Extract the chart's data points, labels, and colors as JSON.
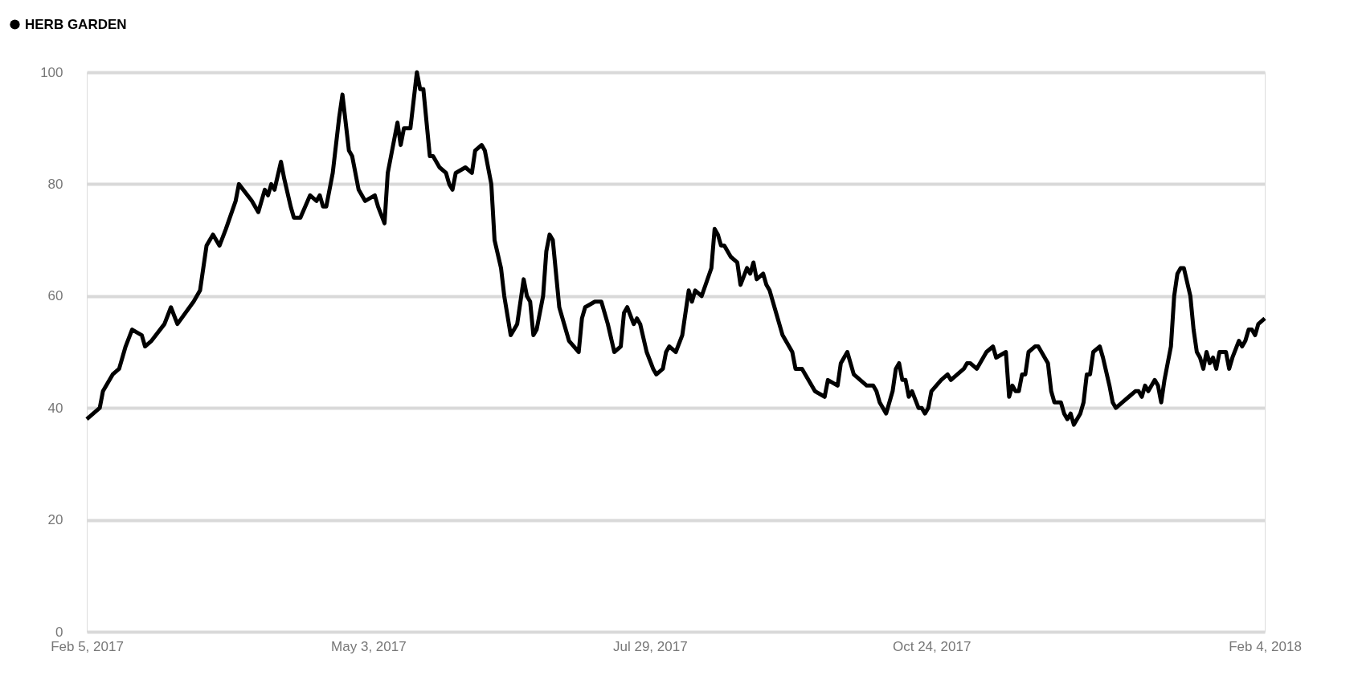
{
  "chart_data": {
    "type": "line",
    "xlim": [
      "2017-02-05",
      "2018-02-04"
    ],
    "ylim": [
      0,
      100
    ],
    "yticks": [
      0,
      20,
      40,
      60,
      80,
      100
    ],
    "xticks": [
      {
        "value": "2017-02-05",
        "label": "Feb 5, 2017"
      },
      {
        "value": "2017-05-03",
        "label": "May 3, 2017"
      },
      {
        "value": "2017-07-29",
        "label": "Jul 29, 2017"
      },
      {
        "value": "2017-10-24",
        "label": "Oct 24, 2017"
      },
      {
        "value": "2018-02-04",
        "label": "Feb 4, 2018"
      }
    ],
    "grid": "y",
    "legend": "top left",
    "marker": "none",
    "line_style": "solid",
    "x": [
      "2017-02-05",
      "2017-02-07",
      "2017-02-09",
      "2017-02-10",
      "2017-02-13",
      "2017-02-15",
      "2017-02-17",
      "2017-02-19",
      "2017-02-22",
      "2017-02-23",
      "2017-02-25",
      "2017-03-01",
      "2017-03-03",
      "2017-03-05",
      "2017-03-10",
      "2017-03-11",
      "2017-03-12",
      "2017-03-14",
      "2017-03-16",
      "2017-03-18",
      "2017-03-20",
      "2017-03-23",
      "2017-03-24",
      "2017-03-28",
      "2017-03-30",
      "2017-04-01",
      "2017-04-02",
      "2017-04-03",
      "2017-04-04",
      "2017-04-06",
      "2017-04-07",
      "2017-04-09",
      "2017-04-10",
      "2017-04-12",
      "2017-04-15",
      "2017-04-17",
      "2017-04-18",
      "2017-04-19",
      "2017-04-20",
      "2017-04-22",
      "2017-04-24",
      "2017-04-25",
      "2017-04-27",
      "2017-04-28",
      "2017-04-30",
      "2017-05-02",
      "2017-05-05",
      "2017-05-06",
      "2017-05-08",
      "2017-05-09",
      "2017-05-11",
      "2017-05-12",
      "2017-05-13",
      "2017-05-14",
      "2017-05-16",
      "2017-05-18",
      "2017-05-19",
      "2017-05-20",
      "2017-05-22",
      "2017-05-23",
      "2017-05-25",
      "2017-05-27",
      "2017-05-28",
      "2017-05-29",
      "2017-05-30",
      "2017-06-02",
      "2017-06-04",
      "2017-06-05",
      "2017-06-07",
      "2017-06-08",
      "2017-06-10",
      "2017-06-11",
      "2017-06-13",
      "2017-06-14",
      "2017-06-16",
      "2017-06-18",
      "2017-06-20",
      "2017-06-21",
      "2017-06-22",
      "2017-06-23",
      "2017-06-24",
      "2017-06-26",
      "2017-06-27",
      "2017-06-28",
      "2017-06-29",
      "2017-07-01",
      "2017-07-04",
      "2017-07-07",
      "2017-07-08",
      "2017-07-09",
      "2017-07-12",
      "2017-07-14",
      "2017-07-16",
      "2017-07-18",
      "2017-07-20",
      "2017-07-21",
      "2017-07-22",
      "2017-07-24",
      "2017-07-25",
      "2017-07-26",
      "2017-07-28",
      "2017-07-30",
      "2017-07-31",
      "2017-08-02",
      "2017-08-03",
      "2017-08-04",
      "2017-08-06",
      "2017-08-08",
      "2017-08-10",
      "2017-08-11",
      "2017-08-12",
      "2017-08-14",
      "2017-08-17",
      "2017-08-18",
      "2017-08-19",
      "2017-08-20",
      "2017-08-21",
      "2017-08-23",
      "2017-08-25",
      "2017-08-26",
      "2017-08-28",
      "2017-08-29",
      "2017-08-30",
      "2017-08-31",
      "2017-09-02",
      "2017-09-03",
      "2017-09-04",
      "2017-09-06",
      "2017-09-08",
      "2017-09-11",
      "2017-09-12",
      "2017-09-14",
      "2017-09-17",
      "2017-09-18",
      "2017-09-21",
      "2017-09-22",
      "2017-09-25",
      "2017-09-26",
      "2017-09-28",
      "2017-09-30",
      "2017-10-04",
      "2017-10-06",
      "2017-10-07",
      "2017-10-08",
      "2017-10-10",
      "2017-10-12",
      "2017-10-13",
      "2017-10-14",
      "2017-10-15",
      "2017-10-16",
      "2017-10-17",
      "2017-10-18",
      "2017-10-20",
      "2017-10-21",
      "2017-10-22",
      "2017-10-23",
      "2017-10-24",
      "2017-10-27",
      "2017-10-29",
      "2017-10-30",
      "2017-11-01",
      "2017-11-03",
      "2017-11-04",
      "2017-11-05",
      "2017-11-07",
      "2017-11-10",
      "2017-11-12",
      "2017-11-13",
      "2017-11-16",
      "2017-11-17",
      "2017-11-18",
      "2017-11-19",
      "2017-11-20",
      "2017-11-21",
      "2017-11-22",
      "2017-11-23",
      "2017-11-25",
      "2017-11-26",
      "2017-11-29",
      "2017-11-30",
      "2017-12-01",
      "2017-12-03",
      "2017-12-04",
      "2017-12-05",
      "2017-12-06",
      "2017-12-07",
      "2017-12-09",
      "2017-12-10",
      "2017-12-11",
      "2017-12-12",
      "2017-12-13",
      "2017-12-15",
      "2017-12-16",
      "2017-12-18",
      "2017-12-19",
      "2017-12-20",
      "2017-12-22",
      "2017-12-24",
      "2017-12-26",
      "2017-12-27",
      "2017-12-28",
      "2017-12-29",
      "2017-12-30",
      "2018-01-01",
      "2018-01-02",
      "2018-01-03",
      "2018-01-04",
      "2018-01-06",
      "2018-01-07",
      "2018-01-08",
      "2018-01-09",
      "2018-01-10",
      "2018-01-12",
      "2018-01-13",
      "2018-01-14",
      "2018-01-15",
      "2018-01-16",
      "2018-01-17",
      "2018-01-18",
      "2018-01-19",
      "2018-01-20",
      "2018-01-21",
      "2018-01-23",
      "2018-01-24",
      "2018-01-25",
      "2018-01-27",
      "2018-01-28",
      "2018-01-29",
      "2018-01-30",
      "2018-01-31",
      "2018-02-01",
      "2018-02-02",
      "2018-02-04"
    ],
    "series": [
      {
        "name": "HERB GARDEN",
        "color": "#000000",
        "values": [
          38,
          39,
          40,
          43,
          46,
          47,
          51,
          54,
          53,
          51,
          52,
          55,
          58,
          55,
          59,
          60,
          61,
          69,
          71,
          69,
          72,
          77,
          80,
          77,
          75,
          79,
          78,
          80,
          79,
          84,
          81,
          76,
          74,
          74,
          78,
          77,
          78,
          76,
          76,
          82,
          92,
          96,
          86,
          85,
          79,
          77,
          78,
          76,
          73,
          82,
          88,
          91,
          87,
          90,
          90,
          100,
          97,
          97,
          85,
          85,
          83,
          82,
          80,
          79,
          82,
          83,
          82,
          86,
          87,
          86,
          80,
          70,
          65,
          60,
          53,
          55,
          63,
          60,
          59,
          53,
          54,
          60,
          68,
          71,
          70,
          58,
          52,
          50,
          56,
          58,
          59,
          59,
          55,
          50,
          51,
          57,
          58,
          55,
          56,
          55,
          50,
          47,
          46,
          47,
          50,
          51,
          50,
          53,
          61,
          59,
          61,
          60,
          65,
          72,
          71,
          69,
          69,
          67,
          66,
          62,
          65,
          64,
          66,
          63,
          64,
          62,
          61,
          57,
          53,
          50,
          47,
          47,
          44,
          43,
          42,
          45,
          44,
          48,
          50,
          46,
          44,
          44,
          43,
          41,
          39,
          43,
          47,
          48,
          45,
          45,
          42,
          43,
          40,
          40,
          39,
          40,
          43,
          45,
          46,
          45,
          46,
          47,
          48,
          48,
          47,
          50,
          51,
          49,
          50,
          42,
          44,
          43,
          43,
          46,
          46,
          50,
          51,
          51,
          48,
          43,
          41,
          41,
          39,
          38,
          39,
          37,
          39,
          41,
          46,
          46,
          50,
          51,
          49,
          44,
          41,
          40,
          41,
          42,
          43,
          43,
          42,
          44,
          43,
          45,
          44,
          41,
          45,
          51,
          60,
          64,
          65,
          65,
          60,
          54,
          50,
          49,
          47,
          50,
          48,
          49,
          47,
          50,
          50,
          47,
          49,
          52,
          51,
          52,
          54,
          54,
          53,
          55,
          56
        ]
      }
    ]
  }
}
